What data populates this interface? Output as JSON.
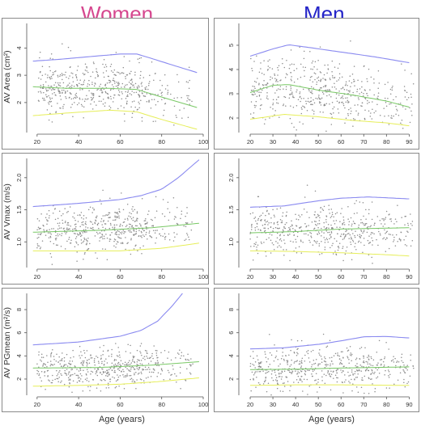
{
  "headers": {
    "women": {
      "label": "Women",
      "color": "#d6488f"
    },
    "men": {
      "label": "Men",
      "color": "#2424c8"
    }
  },
  "colors": {
    "p95": "#8a8af0",
    "median": "#78c864",
    "p5": "#e6ee58",
    "points": "#8c8c8c"
  },
  "x_axis_label": "Age (years)",
  "chart_data": [
    {
      "id": "women-area",
      "type": "scatter",
      "group": "Women",
      "ylabel": "AV Area (cm²)",
      "xlim": [
        15,
        100
      ],
      "ylim": [
        0.9,
        4.9
      ],
      "xticks": [
        20,
        40,
        60,
        80,
        100
      ],
      "yticks": [
        2,
        3,
        4
      ],
      "scatter_mean": [
        [
          20,
          2.55
        ],
        [
          60,
          2.55
        ],
        [
          80,
          2.2
        ],
        [
          95,
          2.0
        ]
      ],
      "scatter_spread": 0.48,
      "curves": {
        "p95": [
          [
            18,
            3.52
          ],
          [
            30,
            3.58
          ],
          [
            45,
            3.68
          ],
          [
            60,
            3.78
          ],
          [
            68,
            3.78
          ],
          [
            75,
            3.62
          ],
          [
            85,
            3.38
          ],
          [
            97,
            3.1
          ]
        ],
        "median": [
          [
            18,
            2.58
          ],
          [
            35,
            2.52
          ],
          [
            55,
            2.52
          ],
          [
            68,
            2.48
          ],
          [
            80,
            2.2
          ],
          [
            97,
            1.82
          ]
        ],
        "p5": [
          [
            18,
            1.52
          ],
          [
            35,
            1.62
          ],
          [
            55,
            1.72
          ],
          [
            68,
            1.66
          ],
          [
            80,
            1.38
          ],
          [
            97,
            1.02
          ]
        ]
      }
    },
    {
      "id": "men-area",
      "type": "scatter",
      "group": "Men",
      "ylabel": "",
      "xlim": [
        15,
        92
      ],
      "ylim": [
        1.4,
        5.9
      ],
      "xticks": [
        20,
        30,
        40,
        50,
        60,
        70,
        80,
        90
      ],
      "yticks": [
        2,
        3,
        4,
        5
      ],
      "scatter_mean": [
        [
          20,
          3.1
        ],
        [
          35,
          3.35
        ],
        [
          60,
          3.0
        ],
        [
          88,
          2.6
        ]
      ],
      "scatter_spread": 0.65,
      "curves": {
        "p95": [
          [
            20,
            4.55
          ],
          [
            30,
            4.85
          ],
          [
            37,
            5.02
          ],
          [
            45,
            4.92
          ],
          [
            60,
            4.72
          ],
          [
            75,
            4.52
          ],
          [
            90,
            4.28
          ]
        ],
        "median": [
          [
            20,
            3.05
          ],
          [
            30,
            3.35
          ],
          [
            37,
            3.38
          ],
          [
            50,
            3.15
          ],
          [
            65,
            2.95
          ],
          [
            80,
            2.7
          ],
          [
            90,
            2.45
          ]
        ],
        "p5": [
          [
            20,
            1.95
          ],
          [
            35,
            2.15
          ],
          [
            50,
            2.05
          ],
          [
            65,
            1.9
          ],
          [
            80,
            1.8
          ],
          [
            90,
            1.68
          ]
        ]
      }
    },
    {
      "id": "women-vmax",
      "type": "scatter",
      "group": "Women",
      "ylabel": "AV Vmax (m/s)",
      "xlim": [
        15,
        100
      ],
      "ylim": [
        0.6,
        2.3
      ],
      "xticks": [
        20,
        40,
        60,
        80,
        100
      ],
      "yticks": [
        1.0,
        1.5,
        2.0
      ],
      "scatter_mean": [
        [
          20,
          1.18
        ],
        [
          70,
          1.22
        ],
        [
          95,
          1.25
        ]
      ],
      "scatter_spread": 0.17,
      "curves": {
        "p95": [
          [
            18,
            1.55
          ],
          [
            40,
            1.6
          ],
          [
            60,
            1.66
          ],
          [
            70,
            1.72
          ],
          [
            80,
            1.82
          ],
          [
            88,
            2.0
          ],
          [
            98,
            2.28
          ]
        ],
        "median": [
          [
            18,
            1.15
          ],
          [
            50,
            1.18
          ],
          [
            75,
            1.22
          ],
          [
            98,
            1.29
          ]
        ],
        "p5": [
          [
            18,
            0.86
          ],
          [
            40,
            0.86
          ],
          [
            60,
            0.86
          ],
          [
            80,
            0.9
          ],
          [
            98,
            0.98
          ]
        ]
      }
    },
    {
      "id": "men-vmax",
      "type": "scatter",
      "group": "Men",
      "ylabel": "",
      "xlim": [
        15,
        92
      ],
      "ylim": [
        0.6,
        2.3
      ],
      "xticks": [
        20,
        30,
        40,
        50,
        60,
        70,
        80,
        90
      ],
      "yticks": [
        1.0,
        1.5,
        2.0
      ],
      "scatter_mean": [
        [
          20,
          1.18
        ],
        [
          55,
          1.2
        ],
        [
          88,
          1.2
        ]
      ],
      "scatter_spread": 0.18,
      "curves": {
        "p95": [
          [
            20,
            1.54
          ],
          [
            35,
            1.56
          ],
          [
            50,
            1.64
          ],
          [
            60,
            1.68
          ],
          [
            72,
            1.7
          ],
          [
            90,
            1.67
          ]
        ],
        "median": [
          [
            20,
            1.14
          ],
          [
            40,
            1.16
          ],
          [
            60,
            1.2
          ],
          [
            90,
            1.22
          ]
        ],
        "p5": [
          [
            20,
            0.86
          ],
          [
            40,
            0.85
          ],
          [
            60,
            0.83
          ],
          [
            80,
            0.8
          ],
          [
            90,
            0.78
          ]
        ]
      }
    },
    {
      "id": "women-pgmean",
      "type": "scatter",
      "group": "Women",
      "ylabel": "AV PGmean (m²/s)",
      "xlim": [
        15,
        100
      ],
      "ylim": [
        0.6,
        9.4
      ],
      "xticks": [
        20,
        40,
        60,
        80,
        100
      ],
      "yticks": [
        2,
        4,
        6,
        8
      ],
      "scatter_mean": [
        [
          20,
          2.8
        ],
        [
          70,
          3.0
        ],
        [
          95,
          3.2
        ]
      ],
      "scatter_spread": 0.85,
      "curves": {
        "p95": [
          [
            18,
            4.95
          ],
          [
            40,
            5.2
          ],
          [
            60,
            5.7
          ],
          [
            70,
            6.2
          ],
          [
            78,
            7.0
          ],
          [
            85,
            8.3
          ],
          [
            90,
            9.4
          ]
        ],
        "median": [
          [
            18,
            2.95
          ],
          [
            50,
            3.0
          ],
          [
            75,
            3.2
          ],
          [
            98,
            3.5
          ]
        ],
        "p5": [
          [
            18,
            1.38
          ],
          [
            40,
            1.45
          ],
          [
            60,
            1.55
          ],
          [
            80,
            1.8
          ],
          [
            98,
            2.1
          ]
        ]
      }
    },
    {
      "id": "men-pgmean",
      "type": "scatter",
      "group": "Men",
      "ylabel": "",
      "xlim": [
        15,
        92
      ],
      "ylim": [
        0.6,
        9.4
      ],
      "xticks": [
        20,
        30,
        40,
        50,
        60,
        70,
        80,
        90
      ],
      "yticks": [
        2,
        4,
        6,
        8
      ],
      "scatter_mean": [
        [
          20,
          2.9
        ],
        [
          60,
          3.0
        ],
        [
          88,
          3.0
        ]
      ],
      "scatter_spread": 0.9,
      "curves": {
        "p95": [
          [
            20,
            4.6
          ],
          [
            35,
            4.7
          ],
          [
            50,
            5.0
          ],
          [
            60,
            5.3
          ],
          [
            70,
            5.65
          ],
          [
            80,
            5.68
          ],
          [
            90,
            5.55
          ]
        ],
        "median": [
          [
            20,
            2.82
          ],
          [
            40,
            2.85
          ],
          [
            60,
            2.95
          ],
          [
            90,
            3.05
          ]
        ],
        "p5": [
          [
            20,
            1.45
          ],
          [
            40,
            1.5
          ],
          [
            60,
            1.5
          ],
          [
            90,
            1.45
          ]
        ]
      }
    }
  ]
}
